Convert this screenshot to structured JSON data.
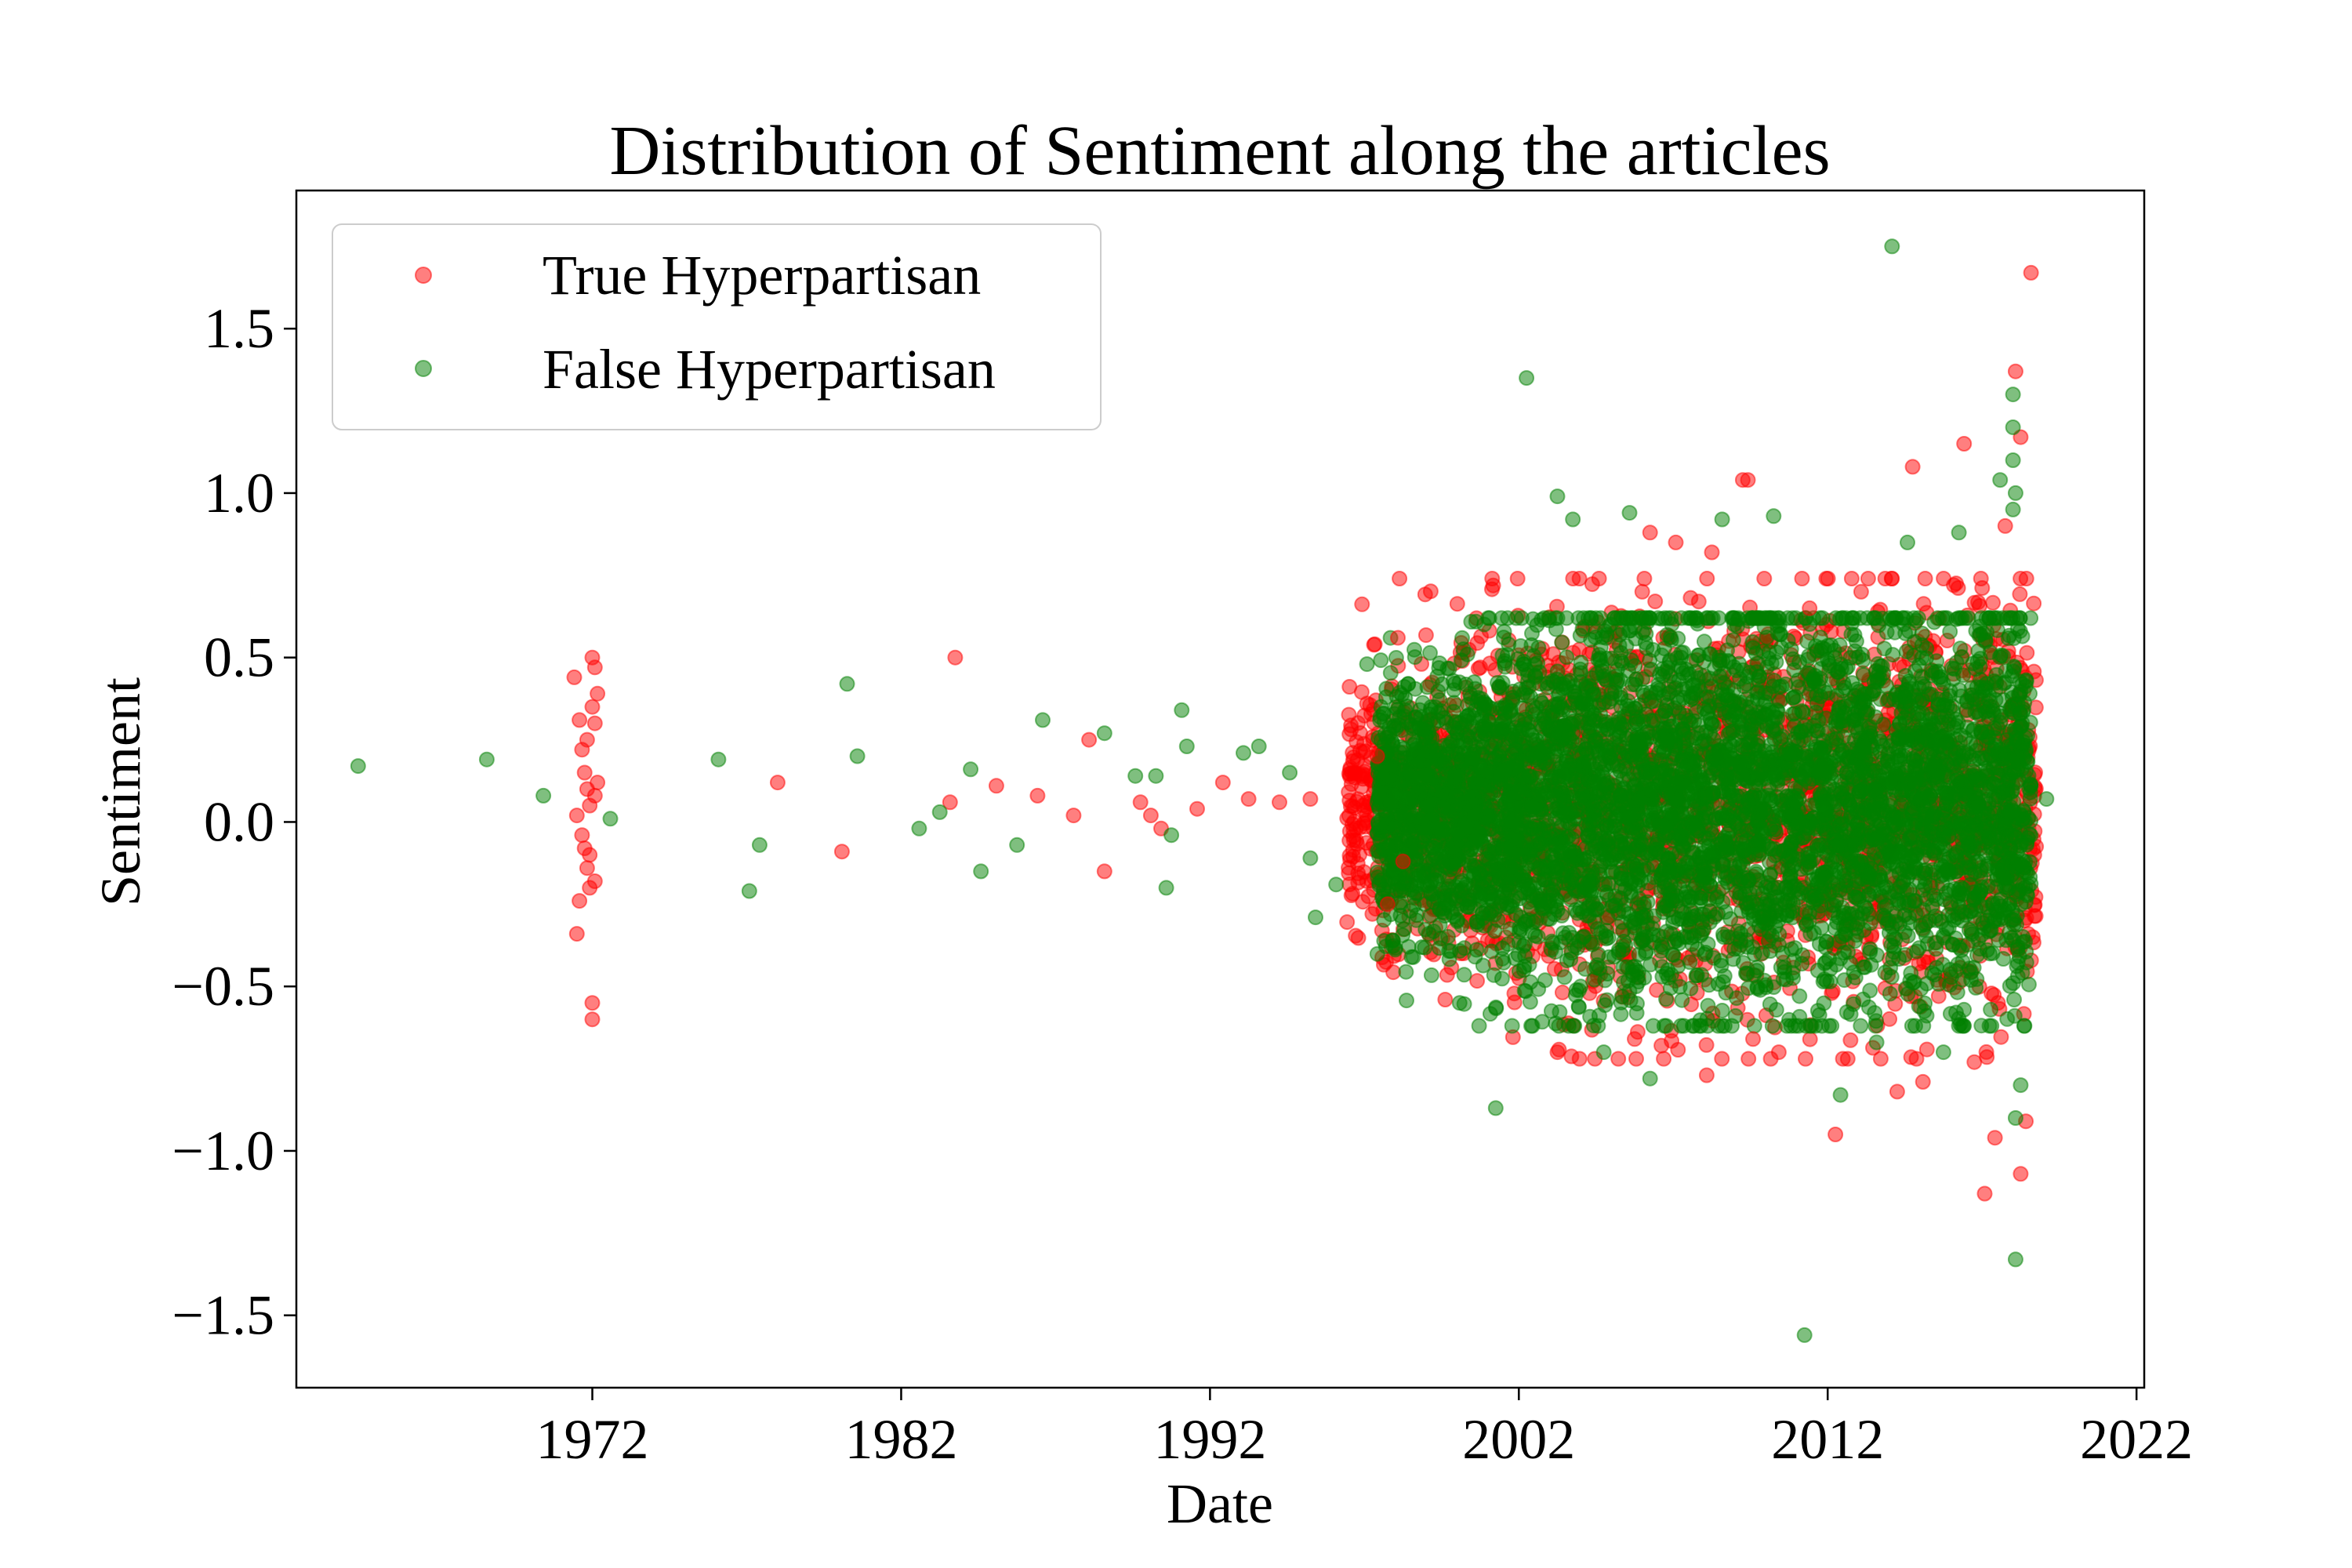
{
  "chart_data": {
    "type": "scatter",
    "title": "Distribution of Sentiment along the articles",
    "xlabel": "Date",
    "ylabel": "Sentiment",
    "x_scale": "date",
    "xlim": [
      "1962-06-01",
      "2022-04-01"
    ],
    "ylim": [
      -1.72,
      1.92
    ],
    "x_ticks": [
      "1972",
      "1982",
      "1992",
      "2002",
      "2012",
      "2022"
    ],
    "y_ticks": [
      1.5,
      1.0,
      0.5,
      0.0,
      -0.5,
      -1.0,
      -1.5
    ],
    "y_tick_labels": [
      "1.5",
      "1.0",
      "0.5",
      "0.0",
      "−0.5",
      "−1.0",
      "−1.5"
    ],
    "grid": false,
    "legend_position": "top-left",
    "series": [
      {
        "name": "True Hyperpartisan",
        "color": "#ff0000",
        "points": [
          [
            "1971-06-01",
            0.44
          ],
          [
            "1971-08-01",
            0.31
          ],
          [
            "1971-09-01",
            0.22
          ],
          [
            "1971-10-01",
            0.15
          ],
          [
            "1971-11-01",
            0.1
          ],
          [
            "1971-12-01",
            0.05
          ],
          [
            "1972-01-01",
            0.5
          ],
          [
            "1972-02-01",
            0.47
          ],
          [
            "1971-07-01",
            0.02
          ],
          [
            "1971-09-01",
            -0.04
          ],
          [
            "1971-10-01",
            -0.08
          ],
          [
            "1971-11-01",
            -0.14
          ],
          [
            "1971-12-01",
            -0.2
          ],
          [
            "1972-01-01",
            0.35
          ],
          [
            "1972-02-01",
            0.3
          ],
          [
            "1971-08-01",
            -0.24
          ],
          [
            "1971-07-01",
            -0.34
          ],
          [
            "1972-01-01",
            -0.55
          ],
          [
            "1972-01-01",
            -0.6
          ],
          [
            "1972-02-01",
            -0.18
          ],
          [
            "1972-03-01",
            0.12
          ],
          [
            "1972-03-01",
            0.39
          ],
          [
            "1971-11-01",
            0.25
          ],
          [
            "1971-12-01",
            -0.1
          ],
          [
            "1972-02-01",
            0.08
          ],
          [
            "1978-01-01",
            0.12
          ],
          [
            "1980-02-01",
            -0.09
          ],
          [
            "1983-10-01",
            0.5
          ],
          [
            "1983-08-01",
            0.06
          ],
          [
            "1985-02-01",
            0.11
          ],
          [
            "1986-06-01",
            0.08
          ],
          [
            "1987-08-01",
            0.02
          ],
          [
            "1988-02-01",
            0.25
          ],
          [
            "1988-08-01",
            -0.15
          ],
          [
            "1989-10-01",
            0.06
          ],
          [
            "1990-02-01",
            0.02
          ],
          [
            "1990-06-01",
            -0.02
          ],
          [
            "1991-08-01",
            0.04
          ],
          [
            "1992-06-01",
            0.12
          ],
          [
            "1993-04-01",
            0.07
          ],
          [
            "1994-04-01",
            0.06
          ],
          [
            "1995-04-01",
            0.07
          ],
          [
            "1997-02-01",
            0.36
          ],
          [
            "1998-02-01",
            0.56
          ],
          [
            "1997-06-01",
            0.2
          ],
          [
            "1997-10-01",
            -0.25
          ],
          [
            "1998-04-01",
            -0.12
          ],
          [
            "2000-10-01",
            0.47
          ],
          [
            "2003-04-01",
            -0.7
          ],
          [
            "2005-10-01",
            -0.66
          ],
          [
            "2007-02-01",
            0.85
          ],
          [
            "2008-04-01",
            0.82
          ],
          [
            "2009-04-01",
            1.04
          ],
          [
            "2009-06-01",
            1.04
          ],
          [
            "2008-02-01",
            -0.77
          ],
          [
            "2009-08-01",
            -0.66
          ],
          [
            "2010-06-01",
            -0.7
          ],
          [
            "2011-06-01",
            0.65
          ],
          [
            "2012-04-01",
            -0.95
          ],
          [
            "2014-04-01",
            -0.82
          ],
          [
            "2014-10-01",
            1.08
          ],
          [
            "2015-02-01",
            -0.79
          ],
          [
            "2016-06-01",
            1.15
          ],
          [
            "2016-10-01",
            -0.73
          ],
          [
            "2017-02-01",
            -1.13
          ],
          [
            "2017-06-01",
            -0.96
          ],
          [
            "2018-02-01",
            1.37
          ],
          [
            "2018-04-01",
            1.17
          ],
          [
            "2018-04-01",
            -1.07
          ],
          [
            "2018-06-01",
            -0.91
          ],
          [
            "2018-08-01",
            1.67
          ],
          [
            "2016-02-01",
            0.72
          ],
          [
            "2017-10-01",
            0.9
          ],
          [
            "2013-02-01",
            0.7
          ],
          [
            "2006-04-01",
            0.88
          ]
        ]
      },
      {
        "name": "False Hyperpartisan",
        "color": "#008000",
        "points": [
          [
            "1964-06-01",
            0.17
          ],
          [
            "1968-08-01",
            0.19
          ],
          [
            "1970-06-01",
            0.08
          ],
          [
            "1972-08-01",
            0.01
          ],
          [
            "1976-02-01",
            0.19
          ],
          [
            "1977-02-01",
            -0.21
          ],
          [
            "1977-06-01",
            -0.07
          ],
          [
            "1980-04-01",
            0.42
          ],
          [
            "1980-08-01",
            0.2
          ],
          [
            "1982-08-01",
            -0.02
          ],
          [
            "1983-04-01",
            0.03
          ],
          [
            "1984-04-01",
            0.16
          ],
          [
            "1984-08-01",
            -0.15
          ],
          [
            "1985-10-01",
            -0.07
          ],
          [
            "1986-08-01",
            0.31
          ],
          [
            "1988-08-01",
            0.27
          ],
          [
            "1989-08-01",
            0.14
          ],
          [
            "1990-04-01",
            0.14
          ],
          [
            "1990-08-01",
            -0.2
          ],
          [
            "1990-10-01",
            -0.04
          ],
          [
            "1991-02-01",
            0.34
          ],
          [
            "1991-04-01",
            0.23
          ],
          [
            "1993-02-01",
            0.21
          ],
          [
            "1993-08-01",
            0.23
          ],
          [
            "1994-08-01",
            0.15
          ],
          [
            "1995-04-01",
            -0.11
          ],
          [
            "1995-06-01",
            -0.29
          ],
          [
            "1996-02-01",
            -0.19
          ],
          [
            "1997-02-01",
            0.48
          ],
          [
            "1998-06-01",
            0.42
          ],
          [
            "2001-04-01",
            -0.87
          ],
          [
            "2002-04-01",
            1.35
          ],
          [
            "2003-04-01",
            0.99
          ],
          [
            "2003-10-01",
            0.92
          ],
          [
            "2005-08-01",
            0.94
          ],
          [
            "2006-04-01",
            -0.78
          ],
          [
            "2008-08-01",
            0.92
          ],
          [
            "2010-04-01",
            0.93
          ],
          [
            "2011-04-01",
            -1.56
          ],
          [
            "2012-06-01",
            -0.83
          ],
          [
            "2014-02-01",
            1.75
          ],
          [
            "2014-08-01",
            0.85
          ],
          [
            "2016-04-01",
            0.88
          ],
          [
            "2017-08-01",
            1.04
          ],
          [
            "2018-02-01",
            1.0
          ],
          [
            "2018-02-01",
            -1.33
          ],
          [
            "2018-02-01",
            -0.9
          ],
          [
            "2018-04-01",
            -0.8
          ],
          [
            "2018-01-01",
            1.3
          ],
          [
            "2018-01-01",
            1.2
          ],
          [
            "2018-01-01",
            1.1
          ],
          [
            "2018-01-01",
            0.95
          ],
          [
            "2019-02-01",
            0.07
          ],
          [
            "2000-02-01",
            -0.55
          ],
          [
            "2004-10-01",
            -0.7
          ],
          [
            "2013-08-01",
            -0.67
          ],
          [
            "2015-10-01",
            -0.7
          ]
        ]
      }
    ],
    "dense_regions": [
      {
        "series": "True Hyperpartisan",
        "x_from": "1996-06-01",
        "x_to": "2018-10-01",
        "y_low": -0.72,
        "y_high": 0.74,
        "count": 2600
      },
      {
        "series": "False Hyperpartisan",
        "x_from": "1997-06-01",
        "x_to": "2018-08-01",
        "y_low": -0.62,
        "y_high": 0.62,
        "count": 5200
      }
    ]
  }
}
